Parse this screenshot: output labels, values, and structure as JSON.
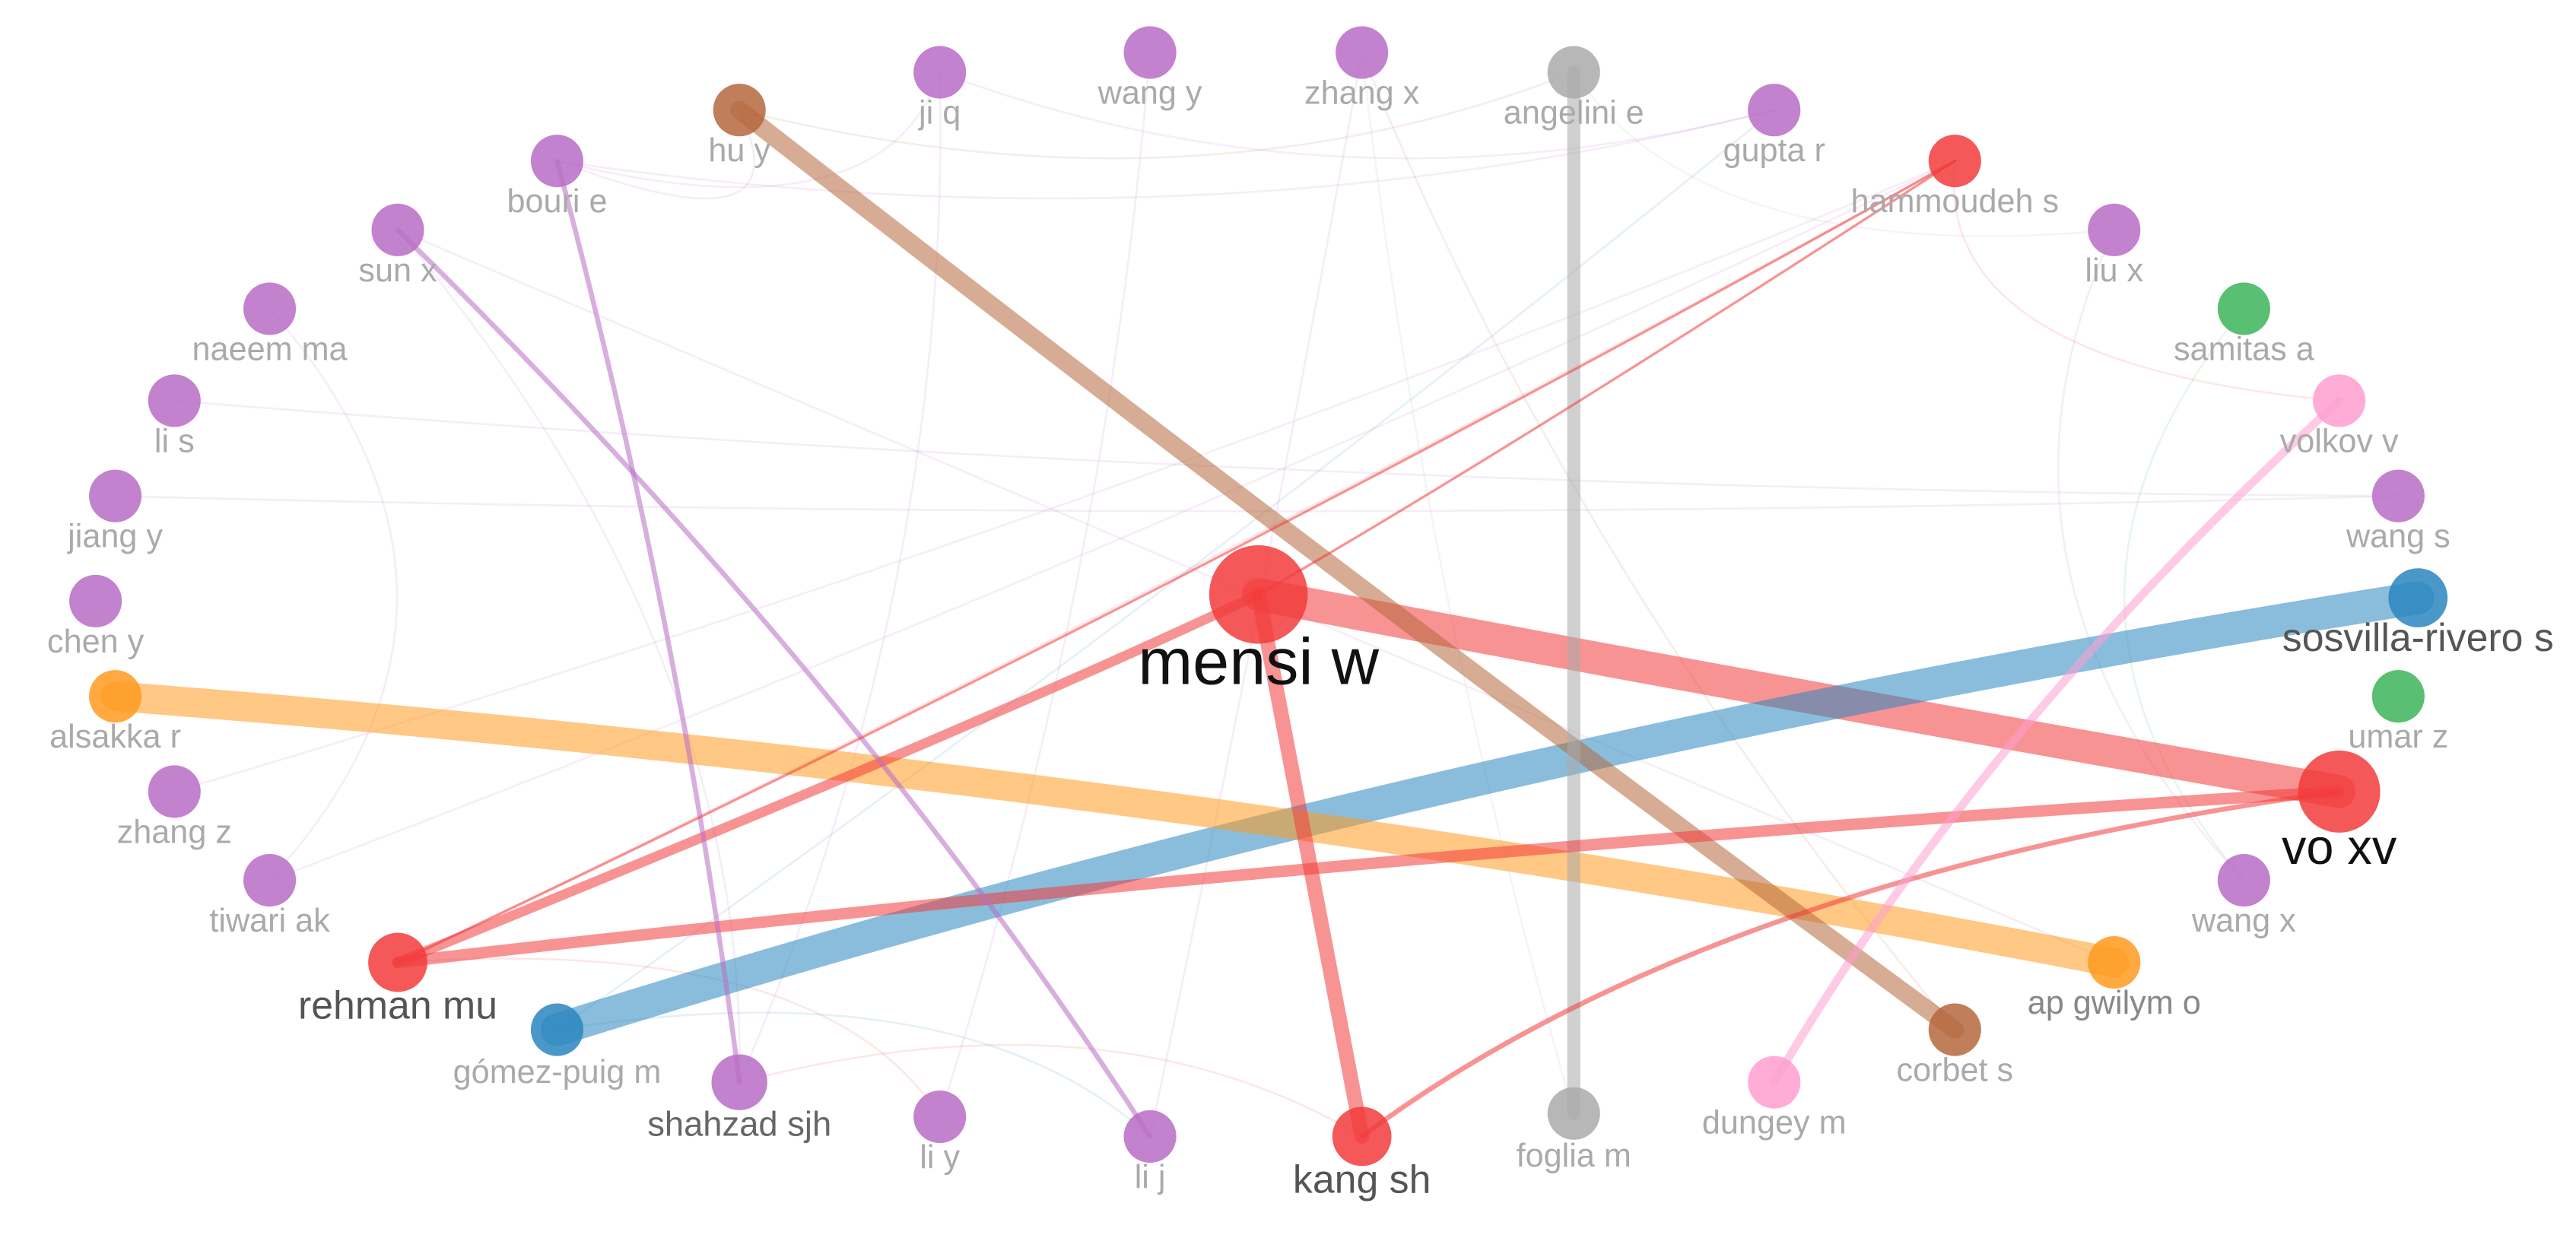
{
  "nodes": [
    {
      "label": "mensi w"
    },
    {
      "label": "vo xv"
    },
    {
      "label": "sosvilla-rivero s"
    },
    {
      "label": "rehman mu"
    },
    {
      "label": "kang sh"
    },
    {
      "label": "gómez-puig m"
    },
    {
      "label": "shahzad sjh"
    },
    {
      "label": "li y"
    },
    {
      "label": "li j"
    },
    {
      "label": "foglia m"
    },
    {
      "label": "dungey m"
    },
    {
      "label": "corbet s"
    },
    {
      "label": "ap gwilym o"
    },
    {
      "label": "wang x"
    },
    {
      "label": "umar z"
    },
    {
      "label": "wang s"
    },
    {
      "label": "volkov v"
    },
    {
      "label": "samitas a"
    },
    {
      "label": "liu x"
    },
    {
      "label": "hammoudeh s"
    },
    {
      "label": "gupta r"
    },
    {
      "label": "angelini e"
    },
    {
      "label": "zhang x"
    },
    {
      "label": "wang y"
    },
    {
      "label": "ji q"
    },
    {
      "label": "hu y"
    },
    {
      "label": "bouri e"
    },
    {
      "label": "sun x"
    },
    {
      "label": "naeem ma"
    },
    {
      "label": "li s"
    },
    {
      "label": "jiang y"
    },
    {
      "label": "chen y"
    },
    {
      "label": "alsakka r"
    },
    {
      "label": "zhang z"
    },
    {
      "label": "tiwari ak"
    }
  ]
}
